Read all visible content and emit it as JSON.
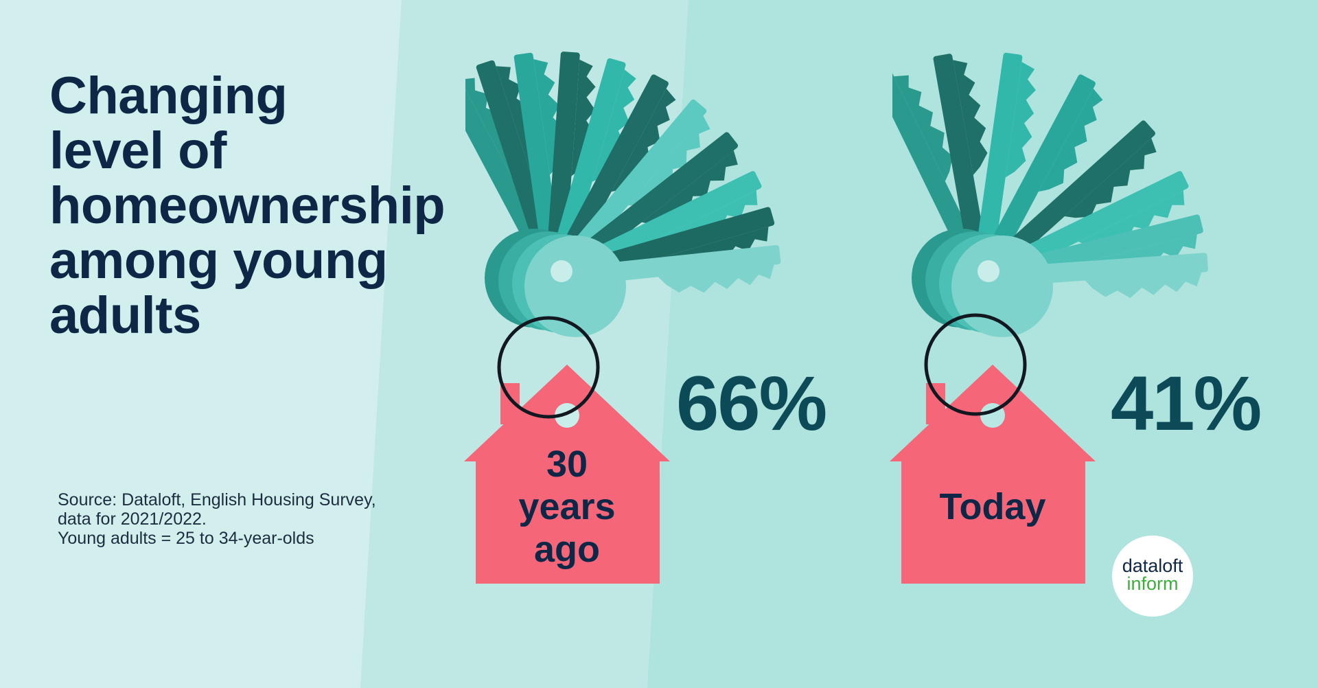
{
  "title_lines": [
    "Changing",
    "level of",
    "homeownership",
    "among young",
    "adults"
  ],
  "source_lines": [
    "Source: Dataloft, English Housing Survey,",
    "data for 2021/2022.",
    "Young adults = 25 to 34-year-olds"
  ],
  "past": {
    "label_lines": [
      "30",
      "years",
      "ago"
    ],
    "percent": "66%",
    "value": 66
  },
  "today": {
    "label": "Today",
    "percent": "41%",
    "value": 41
  },
  "logo": {
    "line1": "dataloft",
    "line2": "inform"
  },
  "colors": {
    "title": "#0e2746",
    "percent": "#0d4a58",
    "house_tag": "#f46678",
    "key_dark": "#1e7068",
    "key_mid": "#2aa79b",
    "key_light": "#7fd3cd",
    "logo_green": "#3cae3a"
  },
  "icons": [
    "key-bunch-icon",
    "house-keyring-icon",
    "dataloft-logo"
  ]
}
